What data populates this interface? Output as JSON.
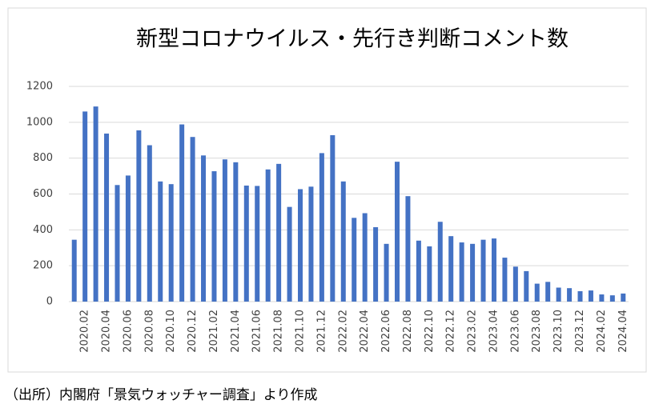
{
  "chart_data": {
    "type": "bar",
    "title": "新型コロナウイルス・先行き判断コメント数",
    "categories": [
      null,
      "2020.02",
      null,
      "2020.04",
      null,
      "2020.06",
      null,
      "2020.08",
      null,
      "2020.10",
      null,
      "2020.12",
      null,
      "2021.02",
      null,
      "2021.04",
      null,
      "2021.06",
      null,
      "2021.08",
      null,
      "2021.10",
      null,
      "2021.12",
      null,
      "2022.02",
      null,
      "2022.04",
      null,
      "2022.06",
      null,
      "2022.08",
      null,
      "2022.10",
      null,
      "2022.12",
      null,
      "2023.02",
      null,
      "2023.04",
      null,
      "2023.06",
      null,
      "2023.08",
      null,
      "2023.10",
      null,
      "2023.12",
      null,
      "2024.02",
      null,
      "2024.04"
    ],
    "values": [
      345,
      1060,
      1088,
      937,
      650,
      703,
      955,
      872,
      670,
      655,
      988,
      918,
      815,
      727,
      793,
      777,
      647,
      645,
      737,
      768,
      528,
      627,
      641,
      828,
      928,
      670,
      467,
      493,
      415,
      322,
      780,
      588,
      340,
      308,
      445,
      365,
      330,
      322,
      345,
      352,
      245,
      195,
      170,
      100,
      110,
      78,
      75,
      58,
      62,
      40,
      35,
      45
    ],
    "color": "#4472c4",
    "ylim": [
      0,
      1200
    ],
    "yticks": [
      0,
      200,
      400,
      600,
      800,
      1000,
      1200
    ],
    "grid": true,
    "source": "（出所）内閣府「景気ウォッチャー調査」より作成"
  }
}
